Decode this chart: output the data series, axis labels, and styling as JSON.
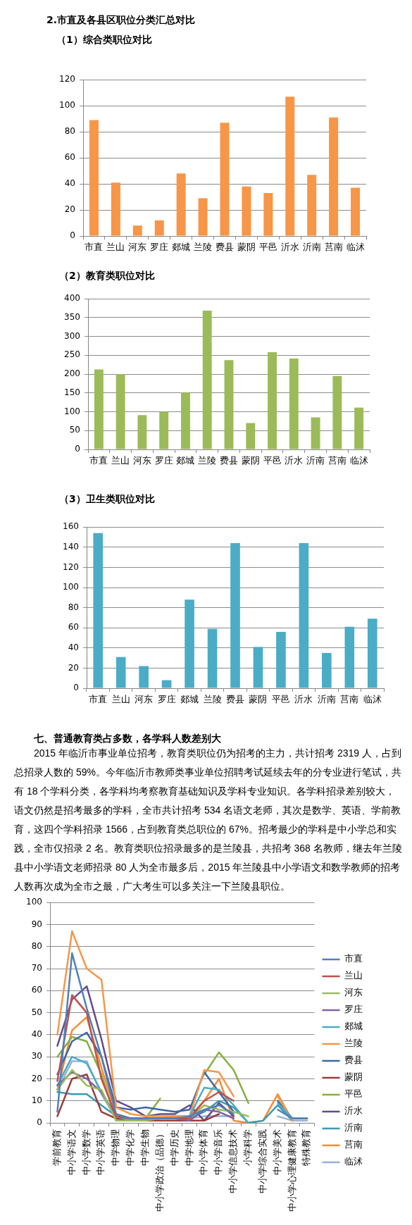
{
  "chart_data": [
    {
      "type": "bar",
      "title": "2.市直及各县区职位分类汇总对比",
      "subtitle": "（1）综合类职位对比",
      "categories": [
        "市直",
        "兰山",
        "河东",
        "罗庄",
        "郯城",
        "兰陵",
        "费县",
        "蒙阴",
        "平邑",
        "沂水",
        "沂南",
        "莒南",
        "临沭"
      ],
      "values": [
        89,
        41,
        8,
        12,
        48,
        29,
        87,
        38,
        33,
        107,
        47,
        91,
        37
      ],
      "color": "#f79646",
      "ylim": [
        0,
        120
      ],
      "yticks": [
        0,
        20,
        40,
        60,
        80,
        100,
        120
      ],
      "grid": "y"
    },
    {
      "type": "bar",
      "title": "（2）教育类职位对比",
      "categories": [
        "市直",
        "兰山",
        "河东",
        "罗庄",
        "郯城",
        "兰陵",
        "费县",
        "蒙阴",
        "平邑",
        "沂水",
        "沂南",
        "莒南",
        "临沭"
      ],
      "values": [
        212,
        200,
        91,
        100,
        151,
        368,
        237,
        70,
        258,
        241,
        85,
        195,
        111
      ],
      "color": "#9bbb59",
      "ylim": [
        0,
        400
      ],
      "yticks": [
        0,
        50,
        100,
        150,
        200,
        250,
        300,
        350,
        400
      ],
      "grid": "y"
    },
    {
      "type": "bar",
      "title": "（3）卫生类职位对比",
      "categories": [
        "市直",
        "兰山",
        "河东",
        "罗庄",
        "郯城",
        "兰陵",
        "费县",
        "蒙阴",
        "平邑",
        "沂水",
        "沂南",
        "莒南",
        "临沭"
      ],
      "values": [
        154,
        31,
        22,
        8,
        88,
        59,
        144,
        41,
        56,
        144,
        35,
        61,
        69
      ],
      "color": "#4bacc6",
      "ylim": [
        0,
        160
      ],
      "yticks": [
        0,
        20,
        40,
        60,
        80,
        100,
        120,
        140,
        160
      ],
      "grid": "y"
    },
    {
      "type": "line",
      "title": "七、普通教育类占多数，各学科人数差别大",
      "annotations": [
        "2015 年临沂市事业单位招考，教育类职位仍为招考的主力，共计招考 2319 人，占到总招录人数的 59%。今年临沂市教师类事业单位招聘考试延续去年的分专业进行笔试，共有 18 个学科分类，各学科均考察教育基础知识及学科专业知识。各学科招录差别较大，语文仍然是招考最多的学科，全市共计招考 534 名语文老师，其次是数学、英语、学前教育，这四个学科招录 1566，占到教育类总职位的 67%。招考最少的学科是中小学总和实践，全市仅招录 2 名。教育类职位招录最多的是兰陵县，共招考 368 名教师，继去年兰陵县中小学语文老师招录 80 人为全市最多后，2015 年兰陵县中小学语文和数学教师的招考人数再次成为全市之最，广大考生可以多关注一下兰陵县职位。"
      ],
      "categories": [
        "学前教育",
        "中小学语文",
        "中小学数学",
        "中小学英语",
        "中学物理",
        "中学化学",
        "中学生物",
        "中小学政治（品德）",
        "中学历史",
        "中学地理",
        "中小学体育",
        "中小学音乐",
        "中小学信息技术",
        "小学科学",
        "中小学综合实践",
        "中小学美术",
        "中小学心理健康教育",
        "特殊教育"
      ],
      "series": [
        {
          "name": "市直",
          "color": "#4f81bd",
          "values": [
            5,
            77,
            52,
            30,
            4,
            2,
            2,
            2,
            2,
            3,
            6,
            8,
            4,
            null,
            null,
            6,
            2,
            2
          ]
        },
        {
          "name": "兰山",
          "color": "#c0504d",
          "values": [
            19,
            58,
            50,
            20,
            3,
            2,
            2,
            2,
            2,
            2,
            10,
            14,
            10,
            null,
            null,
            null,
            null,
            null
          ]
        },
        {
          "name": "河东",
          "color": "#9bbb59",
          "values": [
            15,
            24,
            17,
            15,
            1,
            1,
            1,
            2,
            2,
            2,
            8,
            6,
            5,
            3,
            null,
            null,
            null,
            null
          ]
        },
        {
          "name": "罗庄",
          "color": "#8064a2",
          "values": [
            17,
            23,
            20,
            14,
            3,
            2,
            2,
            2,
            2,
            1,
            6,
            5,
            2,
            null,
            null,
            null,
            null,
            null
          ]
        },
        {
          "name": "郯城",
          "color": "#4bacc6",
          "values": [
            17,
            30,
            27,
            14,
            3,
            1,
            2,
            2,
            2,
            3,
            16,
            15,
            8,
            0,
            null,
            9,
            2,
            null
          ]
        },
        {
          "name": "兰陵",
          "color": "#f79646",
          "values": [
            40,
            87,
            70,
            65,
            7,
            4,
            3,
            3,
            3,
            3,
            24,
            23,
            12,
            null,
            null,
            12,
            1,
            null
          ]
        },
        {
          "name": "费县",
          "color": "#3a6aa8",
          "values": [
            22,
            37,
            41,
            30,
            7,
            6,
            7,
            6,
            5,
            6,
            23,
            14,
            5,
            null,
            null,
            10,
            2,
            2
          ]
        },
        {
          "name": "蒙阴",
          "color": "#9c3c39",
          "values": [
            3,
            20,
            22,
            5,
            2,
            1,
            1,
            1,
            1,
            1,
            1,
            4,
            null,
            null,
            null,
            null,
            null,
            null
          ]
        },
        {
          "name": "平邑",
          "color": "#86b03e",
          "values": [
            30,
            39,
            37,
            22,
            1,
            1,
            2,
            11,
            null,
            null,
            22,
            32,
            24,
            9,
            null,
            null,
            null,
            null
          ]
        },
        {
          "name": "沂水",
          "color": "#654c8a",
          "values": [
            35,
            56,
            62,
            38,
            10,
            7,
            3,
            4,
            4,
            8,
            1,
            9,
            3,
            null,
            null,
            null,
            null,
            null
          ]
        },
        {
          "name": "沂南",
          "color": "#3a9bb5",
          "values": [
            14,
            13,
            13,
            8,
            3,
            1,
            1,
            2,
            2,
            2,
            5,
            10,
            7,
            0,
            1,
            8,
            1,
            null
          ]
        },
        {
          "name": "莒南",
          "color": "#fb8a2e",
          "values": [
            15,
            42,
            48,
            25,
            4,
            2,
            2,
            2,
            3,
            3,
            10,
            20,
            1,
            0,
            1,
            13,
            1,
            null
          ]
        },
        {
          "name": "临沭",
          "color": "#95b3d7",
          "values": [
            15,
            28,
            28,
            13,
            2,
            2,
            2,
            2,
            2,
            2,
            3,
            3,
            3,
            null,
            null,
            3,
            1,
            1
          ]
        }
      ],
      "ylim": [
        0,
        100
      ],
      "yticks": [
        0,
        10,
        20,
        30,
        40,
        50,
        60,
        70,
        80,
        90,
        100
      ],
      "grid": "y",
      "legend": "right",
      "marker": "none"
    }
  ]
}
